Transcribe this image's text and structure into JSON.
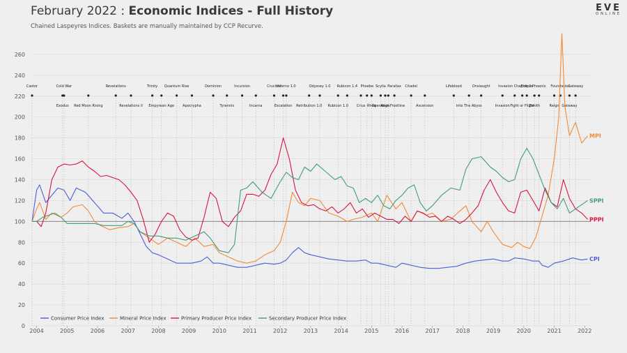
{
  "header": {
    "title_date": "February 2022",
    "title_sep": " : ",
    "title_main": "Economic Indices - Full History",
    "subtitle": "Chained Laspeyres Indices. Baskets are manually maintained by CCP Recurve."
  },
  "logo": {
    "text": "EVE",
    "sub": "ONLINE"
  },
  "chart_data": {
    "type": "line",
    "title": "Economic Indices - Full History",
    "xlabel": "",
    "ylabel": "",
    "xlim": [
      2003.85,
      2022.2
    ],
    "ylim": [
      0,
      280
    ],
    "yticks": [
      0,
      20,
      40,
      60,
      80,
      100,
      120,
      140,
      160,
      180,
      200,
      220,
      240,
      260
    ],
    "xticks": [
      2004,
      2005,
      2006,
      2007,
      2008,
      2009,
      2010,
      2011,
      2012,
      2013,
      2014,
      2015,
      2016,
      2017,
      2018,
      2019,
      2020,
      2021,
      2022
    ],
    "baseline": 100,
    "series": [
      {
        "name": "Consumer Price Index",
        "short": "CPI",
        "color": "#4a5fd6",
        "x": [
          2003.85,
          2004.0,
          2004.1,
          2004.3,
          2004.5,
          2004.7,
          2004.9,
          2005.1,
          2005.3,
          2005.6,
          2005.9,
          2006.2,
          2006.5,
          2006.8,
          2007.0,
          2007.2,
          2007.4,
          2007.6,
          2007.8,
          2008.0,
          2008.3,
          2008.6,
          2008.9,
          2009.1,
          2009.4,
          2009.6,
          2009.8,
          2010.0,
          2010.3,
          2010.6,
          2010.9,
          2011.2,
          2011.5,
          2011.8,
          2012.0,
          2012.2,
          2012.4,
          2012.6,
          2012.8,
          2013.0,
          2013.3,
          2013.6,
          2013.9,
          2014.2,
          2014.5,
          2014.8,
          2015.0,
          2015.2,
          2015.5,
          2015.8,
          2016.0,
          2016.3,
          2016.6,
          2016.9,
          2017.2,
          2017.5,
          2017.8,
          2018.1,
          2018.4,
          2018.7,
          2019.0,
          2019.3,
          2019.5,
          2019.7,
          2020.0,
          2020.3,
          2020.5,
          2020.6,
          2020.8,
          2021.0,
          2021.3,
          2021.6,
          2021.9,
          2022.1
        ],
        "y": [
          100,
          130,
          135,
          118,
          125,
          132,
          130,
          120,
          132,
          128,
          118,
          108,
          108,
          103,
          108,
          100,
          88,
          76,
          70,
          68,
          64,
          60,
          60,
          60,
          62,
          66,
          60,
          60,
          58,
          56,
          56,
          58,
          60,
          59,
          60,
          63,
          70,
          75,
          70,
          68,
          66,
          64,
          63,
          62,
          62,
          63,
          60,
          60,
          58,
          56,
          60,
          58,
          56,
          55,
          55,
          56,
          57,
          60,
          62,
          63,
          64,
          62,
          62,
          65,
          64,
          62,
          62,
          58,
          56,
          60,
          62,
          65,
          63,
          64
        ]
      },
      {
        "name": "Mineral Price Index",
        "short": "MPI",
        "color": "#f08a38",
        "x": [
          2003.85,
          2004.0,
          2004.1,
          2004.3,
          2004.5,
          2004.8,
          2005.0,
          2005.2,
          2005.5,
          2005.7,
          2005.9,
          2006.1,
          2006.4,
          2006.7,
          2007.0,
          2007.2,
          2007.4,
          2007.7,
          2008.0,
          2008.3,
          2008.6,
          2008.9,
          2009.2,
          2009.5,
          2009.8,
          2010.0,
          2010.3,
          2010.6,
          2010.9,
          2011.2,
          2011.5,
          2011.8,
          2012.0,
          2012.2,
          2012.4,
          2012.6,
          2012.8,
          2013.0,
          2013.3,
          2013.6,
          2013.9,
          2014.2,
          2014.4,
          2014.7,
          2015.0,
          2015.2,
          2015.5,
          2015.8,
          2016.0,
          2016.3,
          2016.5,
          2016.8,
          2017.0,
          2017.3,
          2017.6,
          2017.9,
          2018.1,
          2018.3,
          2018.6,
          2018.8,
          2019.0,
          2019.3,
          2019.6,
          2019.8,
          2020.0,
          2020.2,
          2020.4,
          2020.6,
          2020.8,
          2021.0,
          2021.15,
          2021.25,
          2021.35,
          2021.5,
          2021.7,
          2021.9,
          2022.1
        ],
        "y": [
          100,
          112,
          118,
          102,
          108,
          104,
          108,
          114,
          116,
          110,
          100,
          96,
          92,
          94,
          95,
          98,
          90,
          84,
          78,
          84,
          80,
          76,
          84,
          76,
          78,
          70,
          66,
          62,
          60,
          62,
          68,
          72,
          80,
          100,
          128,
          118,
          115,
          122,
          120,
          108,
          105,
          100,
          102,
          104,
          108,
          100,
          125,
          112,
          118,
          100,
          110,
          106,
          108,
          100,
          102,
          110,
          115,
          100,
          90,
          100,
          90,
          78,
          75,
          80,
          76,
          74,
          85,
          105,
          125,
          160,
          200,
          280,
          210,
          182,
          195,
          175,
          182
        ]
      },
      {
        "name": "Primary Producer Price Index",
        "short": "PPPI",
        "color": "#d8143c",
        "x": [
          2003.85,
          2004.0,
          2004.15,
          2004.3,
          2004.5,
          2004.7,
          2004.9,
          2005.1,
          2005.3,
          2005.5,
          2005.7,
          2005.9,
          2006.1,
          2006.3,
          2006.5,
          2006.7,
          2006.9,
          2007.1,
          2007.3,
          2007.5,
          2007.7,
          2007.9,
          2008.1,
          2008.3,
          2008.5,
          2008.7,
          2008.9,
          2009.1,
          2009.3,
          2009.5,
          2009.7,
          2009.9,
          2010.1,
          2010.3,
          2010.5,
          2010.7,
          2010.9,
          2011.1,
          2011.3,
          2011.5,
          2011.7,
          2011.9,
          2012.1,
          2012.3,
          2012.5,
          2012.7,
          2012.9,
          2013.1,
          2013.3,
          2013.5,
          2013.7,
          2013.9,
          2014.1,
          2014.3,
          2014.5,
          2014.7,
          2014.9,
          2015.1,
          2015.3,
          2015.5,
          2015.7,
          2015.9,
          2016.1,
          2016.3,
          2016.5,
          2016.7,
          2016.9,
          2017.1,
          2017.3,
          2017.5,
          2017.7,
          2017.9,
          2018.1,
          2018.3,
          2018.5,
          2018.7,
          2018.9,
          2019.1,
          2019.3,
          2019.5,
          2019.7,
          2019.9,
          2020.1,
          2020.3,
          2020.5,
          2020.7,
          2020.9,
          2021.1,
          2021.3,
          2021.5,
          2021.7,
          2021.9,
          2022.1
        ],
        "y": [
          100,
          100,
          95,
          108,
          140,
          152,
          155,
          154,
          155,
          158,
          152,
          148,
          143,
          144,
          142,
          140,
          135,
          128,
          120,
          102,
          80,
          88,
          100,
          108,
          105,
          92,
          85,
          82,
          84,
          104,
          128,
          122,
          100,
          95,
          104,
          110,
          126,
          126,
          124,
          130,
          145,
          155,
          180,
          160,
          130,
          118,
          115,
          116,
          112,
          110,
          114,
          108,
          112,
          118,
          108,
          112,
          104,
          108,
          105,
          102,
          102,
          98,
          105,
          100,
          110,
          108,
          104,
          105,
          100,
          105,
          102,
          98,
          102,
          108,
          115,
          130,
          140,
          128,
          118,
          110,
          108,
          128,
          130,
          120,
          110,
          132,
          118,
          114,
          140,
          122,
          112,
          108,
          102
        ]
      },
      {
        "name": "Secondary Producer Price Index",
        "short": "SPPI",
        "color": "#3f9b7c",
        "x": [
          2003.85,
          2004.0,
          2004.2,
          2004.4,
          2004.6,
          2004.8,
          2005.0,
          2005.3,
          2005.6,
          2005.9,
          2006.2,
          2006.5,
          2006.8,
          2007.0,
          2007.2,
          2007.4,
          2007.7,
          2008.0,
          2008.3,
          2008.6,
          2008.9,
          2009.2,
          2009.5,
          2009.7,
          2010.0,
          2010.3,
          2010.5,
          2010.7,
          2010.9,
          2011.1,
          2011.4,
          2011.7,
          2012.0,
          2012.2,
          2012.4,
          2012.6,
          2012.8,
          2013.0,
          2013.2,
          2013.4,
          2013.6,
          2013.8,
          2014.0,
          2014.2,
          2014.4,
          2014.6,
          2014.8,
          2015.0,
          2015.2,
          2015.4,
          2015.6,
          2015.8,
          2016.0,
          2016.2,
          2016.4,
          2016.6,
          2016.8,
          2017.0,
          2017.3,
          2017.6,
          2017.9,
          2018.1,
          2018.3,
          2018.6,
          2018.9,
          2019.1,
          2019.3,
          2019.5,
          2019.7,
          2019.9,
          2020.1,
          2020.3,
          2020.5,
          2020.7,
          2020.9,
          2021.1,
          2021.3,
          2021.5,
          2021.7,
          2021.9,
          2022.1
        ],
        "y": [
          100,
          100,
          104,
          106,
          108,
          104,
          98,
          98,
          98,
          98,
          96,
          96,
          96,
          100,
          98,
          90,
          86,
          86,
          84,
          84,
          82,
          86,
          90,
          84,
          72,
          70,
          78,
          130,
          132,
          138,
          128,
          122,
          138,
          147,
          142,
          140,
          152,
          148,
          155,
          150,
          145,
          140,
          143,
          134,
          132,
          118,
          122,
          118,
          125,
          115,
          112,
          120,
          125,
          132,
          135,
          118,
          110,
          115,
          125,
          132,
          130,
          150,
          160,
          162,
          152,
          148,
          142,
          138,
          140,
          160,
          170,
          160,
          145,
          130,
          118,
          112,
          122,
          108,
          112,
          116,
          120
        ]
      }
    ]
  },
  "events": {
    "upper": [
      {
        "x": 2003.85,
        "label": "Castor"
      },
      {
        "x": 2004.9,
        "label": "Cold War"
      },
      {
        "x": 2006.6,
        "label": "Revelations"
      },
      {
        "x": 2007.8,
        "label": "Trinity"
      },
      {
        "x": 2008.6,
        "label": "Quantum Rise"
      },
      {
        "x": 2009.8,
        "label": "Dominion"
      },
      {
        "x": 2010.75,
        "label": "Incursion"
      },
      {
        "x": 2011.8,
        "label": "Crucible"
      },
      {
        "x": 2012.2,
        "label": "Inferno 1.0"
      },
      {
        "x": 2013.3,
        "label": "Odyssey 1.0"
      },
      {
        "x": 2014.2,
        "label": "Rubicon 1.4"
      },
      {
        "x": 2014.85,
        "label": "Phoebe"
      },
      {
        "x": 2015.3,
        "label": "Scylla"
      },
      {
        "x": 2015.75,
        "label": "Parallax"
      },
      {
        "x": 2016.3,
        "label": "Citadel"
      },
      {
        "x": 2017.7,
        "label": "Lifeblood"
      },
      {
        "x": 2018.6,
        "label": "Onslaught"
      },
      {
        "x": 2019.7,
        "label": "Invasion Chapter 2"
      },
      {
        "x": 2020.1,
        "label": "Eclipse"
      },
      {
        "x": 2020.5,
        "label": "Phoenix"
      },
      {
        "x": 2021.2,
        "label": "Foundation"
      },
      {
        "x": 2021.7,
        "label": "Gateway"
      }
    ],
    "lower": [
      {
        "x": 2004.85,
        "label": "Exodus"
      },
      {
        "x": 2005.7,
        "label": "Red Moon Rising"
      },
      {
        "x": 2007.1,
        "label": "Revelations II"
      },
      {
        "x": 2008.1,
        "label": "Empyrean Age"
      },
      {
        "x": 2009.1,
        "label": "Apocrypha"
      },
      {
        "x": 2010.25,
        "label": "Tyrannis"
      },
      {
        "x": 2011.2,
        "label": "Incarna"
      },
      {
        "x": 2012.1,
        "label": "Escalation"
      },
      {
        "x": 2012.95,
        "label": "Retribution 1.0"
      },
      {
        "x": 2013.9,
        "label": "Rubicon 1.0"
      },
      {
        "x": 2014.65,
        "label": "Crius"
      },
      {
        "x": 2015.0,
        "label": "Rhea"
      },
      {
        "x": 2015.45,
        "label": "Aegis"
      },
      {
        "x": 2015.55,
        "label": "Operation Frostline"
      },
      {
        "x": 2016.75,
        "label": "Ascension"
      },
      {
        "x": 2018.2,
        "label": "Into The Abyss"
      },
      {
        "x": 2019.3,
        "label": "Invasion"
      },
      {
        "x": 2019.95,
        "label": "Fight or Flight"
      },
      {
        "x": 2020.35,
        "label": "Zenith"
      },
      {
        "x": 2021.0,
        "label": "Reign"
      },
      {
        "x": 2021.5,
        "label": "Gateway"
      }
    ]
  }
}
